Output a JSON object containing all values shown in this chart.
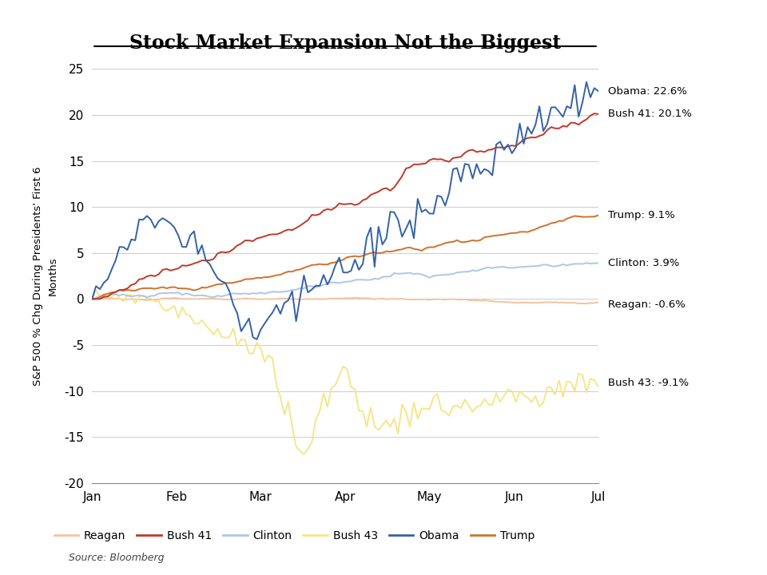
{
  "title": "Stock Market Expansion Not the Biggest",
  "ylabel": "S&P 500 % Chg During Presidents' First 6\nMonths",
  "source": "Source: Bloomberg",
  "ylim": [
    -20,
    25
  ],
  "yticks": [
    -20,
    -15,
    -10,
    -5,
    0,
    5,
    10,
    15,
    20,
    25
  ],
  "months": [
    "Jan",
    "Feb",
    "Mar",
    "Apr",
    "May",
    "Jun",
    "Jul"
  ],
  "colors": {
    "Reagan": "#f2c49e",
    "Bush41": "#c0392b",
    "Clinton": "#aec6e8",
    "Bush43": "#f5e68a",
    "Obama": "#3461a8",
    "Trump": "#d4712a"
  },
  "labels": {
    "Reagan": "Reagan",
    "Bush41": "Bush 41",
    "Clinton": "Clinton",
    "Bush43": "Bush 43",
    "Obama": "Obama",
    "Trump": "Trump"
  },
  "ann_y": {
    "Obama": 22.6,
    "Bush41": 20.1,
    "Trump": 9.1,
    "Clinton": 3.9,
    "Reagan": -0.6,
    "Bush43": -9.1
  },
  "ann_texts": {
    "Obama": "Obama: 22.6%",
    "Bush41": "Bush 41: 20.1%",
    "Trump": "Trump: 9.1%",
    "Clinton": "Clinton: 3.9%",
    "Reagan": "Reagan: -0.6%",
    "Bush43": "Bush 43: -9.1%"
  },
  "background_color": "#ffffff",
  "grid_color": "#cccccc",
  "n_points": 130,
  "figsize": [
    9.6,
    7.2
  ],
  "dpi": 100
}
